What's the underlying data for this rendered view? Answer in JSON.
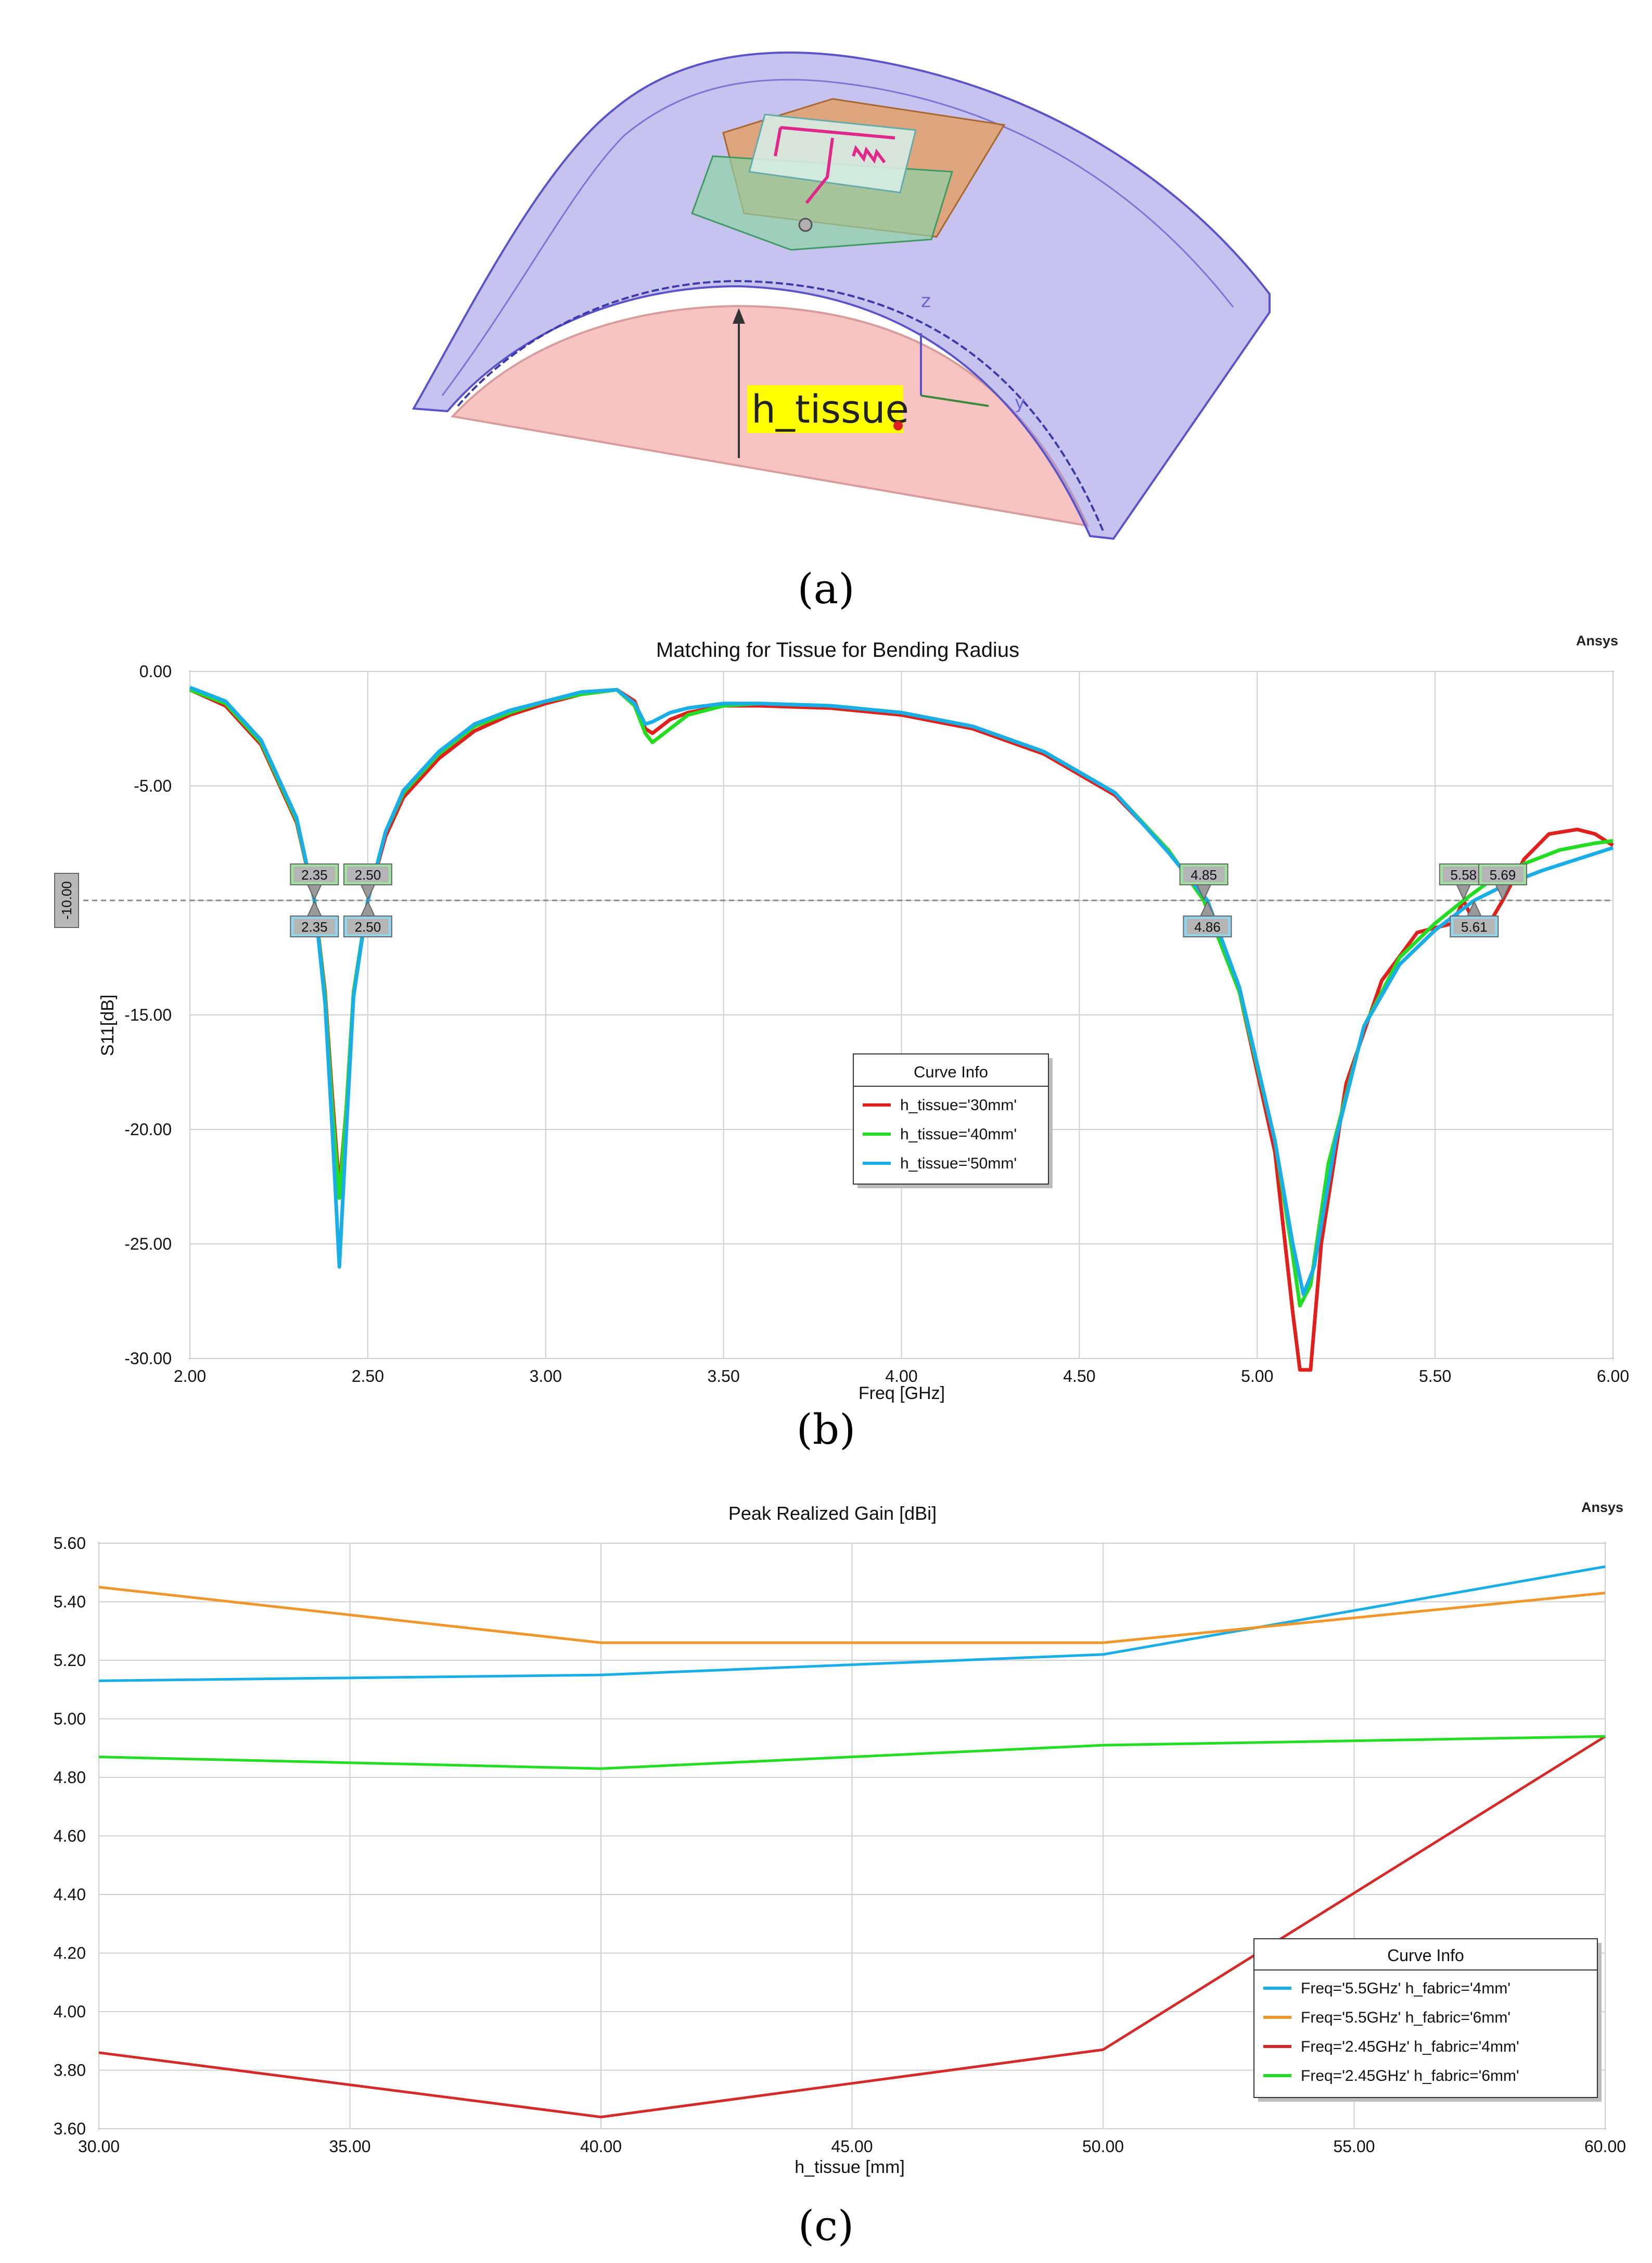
{
  "panels": {
    "a": {
      "caption": "(a)",
      "callout": "h_tissue",
      "axes": {
        "z": "z",
        "y": "y"
      }
    },
    "b": {
      "caption": "(b)",
      "brand": "Ansys"
    },
    "c": {
      "caption": "(c)",
      "brand": "Ansys"
    }
  },
  "chart_data": [
    {
      "type": "line",
      "title": "Matching for Tissue for Bending Radius",
      "xlabel": "Freq [GHz]",
      "ylabel": "S11[dB]",
      "xlim": [
        2.0,
        6.0
      ],
      "ylim": [
        -30.0,
        0.0
      ],
      "x_ticks": [
        "2.00",
        "2.50",
        "3.00",
        "3.50",
        "4.00",
        "4.50",
        "5.00",
        "5.50",
        "6.00"
      ],
      "y_ticks": [
        "0.00",
        "-5.00",
        "-10.00",
        "-15.00",
        "-20.00",
        "-25.00",
        "-30.00"
      ],
      "reference_line": {
        "y": -10.0,
        "label": "-10.00"
      },
      "legend_title": "Curve Info",
      "legend_position": "center",
      "colors": [
        "#e0201c",
        "#22dd22",
        "#1aaee8"
      ],
      "series": [
        {
          "name": "h_tissue='30mm'",
          "points": [
            [
              2.0,
              -0.8
            ],
            [
              2.1,
              -1.5
            ],
            [
              2.2,
              -3.2
            ],
            [
              2.3,
              -6.6
            ],
            [
              2.35,
              -10.0
            ],
            [
              2.38,
              -14.0
            ],
            [
              2.4,
              -18.5
            ],
            [
              2.42,
              -22.6
            ],
            [
              2.44,
              -19.0
            ],
            [
              2.46,
              -14.0
            ],
            [
              2.5,
              -10.0
            ],
            [
              2.55,
              -7.2
            ],
            [
              2.6,
              -5.5
            ],
            [
              2.7,
              -3.8
            ],
            [
              2.8,
              -2.6
            ],
            [
              2.9,
              -1.9
            ],
            [
              3.0,
              -1.4
            ],
            [
              3.1,
              -1.0
            ],
            [
              3.2,
              -0.8
            ],
            [
              3.25,
              -1.3
            ],
            [
              3.28,
              -2.5
            ],
            [
              3.3,
              -2.7
            ],
            [
              3.35,
              -2.1
            ],
            [
              3.4,
              -1.8
            ],
            [
              3.5,
              -1.5
            ],
            [
              3.6,
              -1.5
            ],
            [
              3.8,
              -1.6
            ],
            [
              4.0,
              -1.9
            ],
            [
              4.2,
              -2.5
            ],
            [
              4.4,
              -3.6
            ],
            [
              4.6,
              -5.4
            ],
            [
              4.75,
              -7.8
            ],
            [
              4.85,
              -10.0
            ],
            [
              4.95,
              -14.0
            ],
            [
              5.05,
              -21.0
            ],
            [
              5.1,
              -28.0
            ],
            [
              5.12,
              -30.5
            ],
            [
              5.15,
              -30.5
            ],
            [
              5.18,
              -25.0
            ],
            [
              5.25,
              -18.0
            ],
            [
              5.35,
              -13.5
            ],
            [
              5.45,
              -11.4
            ],
            [
              5.55,
              -11.0
            ],
            [
              5.58,
              -10.0
            ],
            [
              5.62,
              -11.3
            ],
            [
              5.66,
              -10.8
            ],
            [
              5.69,
              -10.0
            ],
            [
              5.75,
              -8.2
            ],
            [
              5.82,
              -7.1
            ],
            [
              5.9,
              -6.9
            ],
            [
              5.95,
              -7.1
            ],
            [
              6.0,
              -7.6
            ]
          ]
        },
        {
          "name": "h_tissue='40mm'",
          "points": [
            [
              2.0,
              -0.8
            ],
            [
              2.1,
              -1.4
            ],
            [
              2.2,
              -3.1
            ],
            [
              2.3,
              -6.5
            ],
            [
              2.35,
              -10.0
            ],
            [
              2.38,
              -14.2
            ],
            [
              2.4,
              -19.0
            ],
            [
              2.42,
              -23.0
            ],
            [
              2.44,
              -19.0
            ],
            [
              2.46,
              -14.0
            ],
            [
              2.5,
              -10.0
            ],
            [
              2.55,
              -7.0
            ],
            [
              2.6,
              -5.3
            ],
            [
              2.7,
              -3.6
            ],
            [
              2.8,
              -2.4
            ],
            [
              2.9,
              -1.8
            ],
            [
              3.0,
              -1.3
            ],
            [
              3.1,
              -1.0
            ],
            [
              3.2,
              -0.8
            ],
            [
              3.25,
              -1.5
            ],
            [
              3.28,
              -2.7
            ],
            [
              3.3,
              -3.1
            ],
            [
              3.35,
              -2.5
            ],
            [
              3.4,
              -1.9
            ],
            [
              3.5,
              -1.5
            ],
            [
              3.6,
              -1.4
            ],
            [
              3.8,
              -1.5
            ],
            [
              4.0,
              -1.8
            ],
            [
              4.2,
              -2.4
            ],
            [
              4.4,
              -3.5
            ],
            [
              4.6,
              -5.3
            ],
            [
              4.75,
              -7.8
            ],
            [
              4.85,
              -10.0
            ],
            [
              4.95,
              -14.0
            ],
            [
              5.05,
              -20.5
            ],
            [
              5.1,
              -25.5
            ],
            [
              5.12,
              -27.7
            ],
            [
              5.15,
              -26.8
            ],
            [
              5.2,
              -21.5
            ],
            [
              5.3,
              -15.5
            ],
            [
              5.4,
              -12.5
            ],
            [
              5.5,
              -11.0
            ],
            [
              5.58,
              -10.0
            ],
            [
              5.65,
              -9.2
            ],
            [
              5.75,
              -8.4
            ],
            [
              5.85,
              -7.8
            ],
            [
              5.95,
              -7.5
            ],
            [
              6.0,
              -7.4
            ]
          ]
        },
        {
          "name": "h_tissue='50mm'",
          "points": [
            [
              2.0,
              -0.7
            ],
            [
              2.1,
              -1.3
            ],
            [
              2.2,
              -3.0
            ],
            [
              2.3,
              -6.4
            ],
            [
              2.35,
              -10.0
            ],
            [
              2.38,
              -14.5
            ],
            [
              2.4,
              -20.0
            ],
            [
              2.42,
              -26.0
            ],
            [
              2.44,
              -20.0
            ],
            [
              2.46,
              -14.2
            ],
            [
              2.5,
              -10.0
            ],
            [
              2.55,
              -7.0
            ],
            [
              2.6,
              -5.2
            ],
            [
              2.7,
              -3.5
            ],
            [
              2.8,
              -2.3
            ],
            [
              2.9,
              -1.7
            ],
            [
              3.0,
              -1.3
            ],
            [
              3.1,
              -0.9
            ],
            [
              3.2,
              -0.8
            ],
            [
              3.25,
              -1.4
            ],
            [
              3.28,
              -2.3
            ],
            [
              3.3,
              -2.2
            ],
            [
              3.35,
              -1.8
            ],
            [
              3.4,
              -1.6
            ],
            [
              3.5,
              -1.4
            ],
            [
              3.6,
              -1.4
            ],
            [
              3.8,
              -1.5
            ],
            [
              4.0,
              -1.8
            ],
            [
              4.2,
              -2.4
            ],
            [
              4.4,
              -3.5
            ],
            [
              4.6,
              -5.3
            ],
            [
              4.75,
              -7.9
            ],
            [
              4.86,
              -10.0
            ],
            [
              4.95,
              -13.8
            ],
            [
              5.05,
              -20.5
            ],
            [
              5.1,
              -25.0
            ],
            [
              5.13,
              -27.2
            ],
            [
              5.16,
              -26.0
            ],
            [
              5.22,
              -20.5
            ],
            [
              5.3,
              -15.5
            ],
            [
              5.4,
              -12.8
            ],
            [
              5.5,
              -11.3
            ],
            [
              5.61,
              -10.0
            ],
            [
              5.7,
              -9.3
            ],
            [
              5.8,
              -8.7
            ],
            [
              5.9,
              -8.2
            ],
            [
              6.0,
              -7.7
            ]
          ]
        }
      ],
      "markers": [
        {
          "x": 2.35,
          "label": "2.35",
          "position": "above"
        },
        {
          "x": 2.35,
          "label": "2.35",
          "position": "below"
        },
        {
          "x": 2.5,
          "label": "2.50",
          "position": "above"
        },
        {
          "x": 2.5,
          "label": "2.50",
          "position": "below"
        },
        {
          "x": 4.85,
          "label": "4.85",
          "position": "above"
        },
        {
          "x": 4.86,
          "label": "4.86",
          "position": "below"
        },
        {
          "x": 5.58,
          "label": "5.58",
          "position": "above"
        },
        {
          "x": 5.69,
          "label": "5.69",
          "position": "above"
        },
        {
          "x": 5.61,
          "label": "5.61",
          "position": "below"
        }
      ]
    },
    {
      "type": "line",
      "title": "Peak Realized Gain [dBi]",
      "xlabel": "h_tissue [mm]",
      "ylabel": "",
      "xlim": [
        30.0,
        60.0
      ],
      "ylim": [
        3.6,
        5.6
      ],
      "x_ticks": [
        "30.00",
        "35.00",
        "40.00",
        "45.00",
        "50.00",
        "55.00",
        "60.00"
      ],
      "y_ticks": [
        "5.60",
        "5.40",
        "5.20",
        "5.00",
        "4.80",
        "4.60",
        "4.40",
        "4.20",
        "4.00",
        "3.80",
        "3.60"
      ],
      "legend_title": "Curve Info",
      "legend_position": "bottom-right",
      "colors": [
        "#1aaee8",
        "#f0962a",
        "#d42a2a",
        "#22dd22"
      ],
      "series": [
        {
          "name": "Freq='5.5GHz' h_fabric='4mm'",
          "x": [
            30,
            40,
            50,
            60
          ],
          "values": [
            5.13,
            5.15,
            5.22,
            5.52
          ]
        },
        {
          "name": "Freq='5.5GHz' h_fabric='6mm'",
          "x": [
            30,
            40,
            50,
            60
          ],
          "values": [
            5.45,
            5.26,
            5.26,
            5.43
          ]
        },
        {
          "name": "Freq='2.45GHz' h_fabric='4mm'",
          "x": [
            30,
            40,
            50,
            60
          ],
          "values": [
            3.86,
            3.64,
            3.87,
            4.94
          ]
        },
        {
          "name": "Freq='2.45GHz' h_fabric='6mm'",
          "x": [
            30,
            40,
            50,
            60
          ],
          "values": [
            4.87,
            4.83,
            4.91,
            4.94
          ]
        }
      ]
    }
  ]
}
